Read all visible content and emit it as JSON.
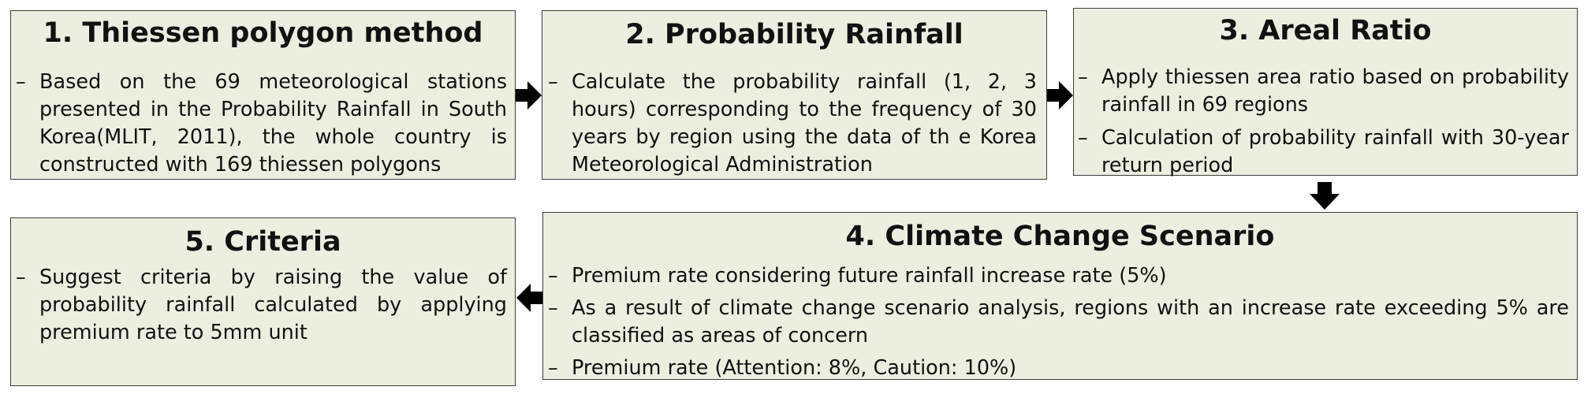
{
  "steps": [
    {
      "title": "1. Thiessen polygon method",
      "items": [
        "Based on the 69 meteorological stations presented in the Probability Rainfall in South Korea(MLIT, 2011), the whole country is constructed with 169 thiessen polygons"
      ]
    },
    {
      "title": "2. Probability Rainfall",
      "items": [
        "Calculate the probability rainfall (1, 2, 3 hours) corresponding to the frequency of 30 years by region using the data of th e Korea Meteorological Administration"
      ]
    },
    {
      "title": "3. Areal Ratio",
      "items": [
        "Apply thiessen area ratio based on probability rainfall in 69 regions",
        "Calculation of probability rainfall with 30-year return period"
      ]
    },
    {
      "title": "4. Climate Change Scenario",
      "items": [
        "Premium rate considering future rainfall increase rate (5%)",
        "As a result of climate change scenario analysis, regions with an increase rate exceeding 5% are classified as areas of concern",
        "Premium rate (Attention: 8%, Caution: 10%)"
      ]
    },
    {
      "title": "5. Criteria",
      "items": [
        "Suggest criteria by raising the value of probability rainfall calculated by applying premium rate to 5mm unit"
      ]
    }
  ],
  "arrows": [
    {
      "direction": "right",
      "from": "step-1",
      "to": "step-2"
    },
    {
      "direction": "right",
      "from": "step-2",
      "to": "step-3"
    },
    {
      "direction": "down",
      "from": "step-3",
      "to": "step-4"
    },
    {
      "direction": "left",
      "from": "step-4",
      "to": "step-5"
    }
  ],
  "colors": {
    "box_fill": "#ecefdf",
    "box_border": "#3c3c3c",
    "arrow": "#000000",
    "text": "#111111"
  }
}
